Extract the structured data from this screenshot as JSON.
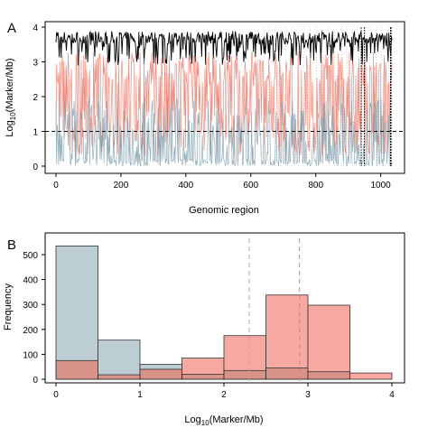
{
  "chart_data": [
    {
      "panel": "A",
      "type": "line",
      "xlabel": "Genomic region",
      "ylabel_main": "Log",
      "ylabel_sub": "10",
      "ylabel_rest": "(Marker/Mb)",
      "xlim": [
        0,
        1040
      ],
      "ylim": [
        0,
        4
      ],
      "xticks": [
        0,
        200,
        400,
        600,
        800,
        1000
      ],
      "yticks": [
        0,
        1,
        2,
        3,
        4
      ],
      "threshold": 1,
      "series": [
        {
          "color": "#000000",
          "base": 3.7,
          "amp": 0.18,
          "dip_prob": 0.35,
          "dip_min": 2.9
        },
        {
          "color": "#f07a6a",
          "base": 2.6,
          "amp": 0.5,
          "dip_prob": 0.5,
          "dip_min": 0.3
        },
        {
          "color": "#7f9eac",
          "base": 1.0,
          "amp": 0.7,
          "dip_prob": 0.0,
          "dip_min": 0.0
        }
      ],
      "dotted_lines_region": [
        640,
        1035
      ],
      "dense_lines": [
        940,
        950,
        1030,
        1032
      ]
    },
    {
      "panel": "B",
      "type": "bar",
      "xlabel_main": "Log",
      "xlabel_sub": "10",
      "xlabel_rest": "(Marker/Mb)",
      "ylabel": "Frequency",
      "xlim": [
        0,
        4
      ],
      "ylim": [
        0,
        520
      ],
      "xticks": [
        0,
        1,
        2,
        3,
        4
      ],
      "yticks": [
        0,
        100,
        200,
        300,
        400,
        500
      ],
      "bin_edges": [
        0,
        0.5,
        1.0,
        1.5,
        2.0,
        2.5,
        3.0,
        3.5,
        4.0
      ],
      "series": [
        {
          "color": "#bccdd3",
          "values": [
            535,
            157,
            60,
            20,
            35,
            45,
            30,
            0
          ]
        },
        {
          "color": "#f7a9a1",
          "values": [
            75,
            18,
            40,
            85,
            175,
            338,
            297,
            25
          ]
        }
      ],
      "overlap_color": "#d99389",
      "vlines": [
        {
          "x": 2.3,
          "color": "#c9a09a"
        },
        {
          "x": 2.9,
          "color": "#e07c6a"
        }
      ]
    }
  ],
  "labels": {
    "panel_a": "A",
    "panel_b": "B"
  }
}
